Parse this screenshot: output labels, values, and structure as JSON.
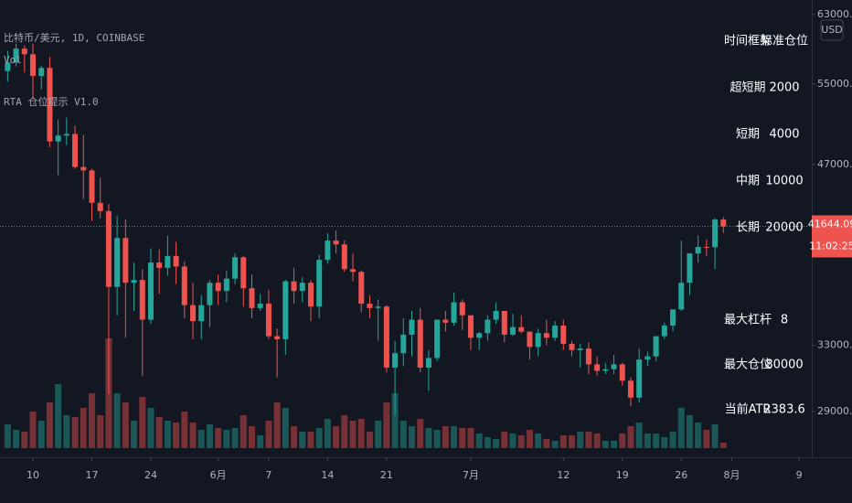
{
  "chart_data": {
    "type": "candlestick",
    "title": "比特币/美元, 1D, COINBASE",
    "indicators": [
      "Vol",
      "RTA 仓位提示 V1.0"
    ],
    "currency": "USD",
    "countdown": "11:02:25",
    "log_scale": true,
    "up_color": "#26a69a",
    "down_color": "#ef5350",
    "x": [
      7,
      8,
      9,
      10,
      11,
      12,
      13,
      14,
      15,
      16,
      17,
      18,
      19,
      20,
      21,
      22,
      23,
      24,
      25,
      26,
      27,
      28,
      29,
      30,
      31,
      32,
      33,
      34,
      35,
      36,
      37,
      38,
      39,
      40,
      41,
      42,
      43,
      44,
      45,
      46,
      47,
      48,
      49,
      50,
      51,
      52,
      53,
      54,
      55,
      56,
      57,
      58,
      59,
      60,
      61,
      62,
      63,
      64,
      65,
      66,
      67,
      68,
      69,
      70,
      71,
      72,
      73,
      74,
      75,
      76,
      77,
      78,
      79,
      80,
      81,
      82,
      83,
      84,
      85,
      86,
      87,
      88,
      89,
      90,
      91,
      92
    ],
    "xlim": [
      6.09,
      102.5
    ],
    "xticks": [
      10,
      17,
      24,
      {
        "value": 32,
        "label": "6月"
      },
      {
        "value": 38,
        "label": "7"
      },
      {
        "value": 45,
        "label": "14"
      },
      {
        "value": 52,
        "label": "21"
      },
      {
        "value": 62,
        "label": "7月"
      },
      {
        "value": 73,
        "label": "12"
      },
      {
        "value": 80,
        "label": "19"
      },
      {
        "value": 87,
        "label": "26"
      },
      {
        "value": 93,
        "label": "8月"
      },
      {
        "value": 101,
        "label": "9"
      }
    ],
    "ylim": [
      27000,
      64800
    ],
    "yticks": [
      {
        "value": 63000,
        "label": "63000.00"
      },
      {
        "value": 55000,
        "label": "55000.00"
      },
      {
        "value": 47000,
        "label": "47000.00"
      },
      {
        "value": 33000,
        "label": "33000.00"
      },
      {
        "value": 29000,
        "label": "29000.00"
      }
    ],
    "open": [
      56400,
      57350,
      58930,
      58280,
      55860,
      56750,
      49150,
      49720,
      49880,
      46760,
      46450,
      43600,
      42900,
      37000,
      40700,
      37300,
      37500,
      34700,
      38800,
      38400,
      39300,
      38500,
      35700,
      34600,
      35700,
      37300,
      36700,
      37600,
      39200,
      36900,
      35500,
      35800,
      33600,
      33400,
      37400,
      36700,
      37300,
      35600,
      39000,
      40500,
      40200,
      38300,
      38100,
      35800,
      35500,
      35600,
      31600,
      32500,
      33700,
      34700,
      31600,
      32200,
      34700,
      34500,
      35900,
      35000,
      33500,
      33800,
      34700,
      35300,
      33700,
      34200,
      33900,
      32900,
      33800,
      33500,
      34300,
      33100,
      32700,
      32800,
      31800,
      31400,
      31500,
      31800,
      30800,
      29800,
      32100,
      32300,
      33600,
      34300,
      35400,
      37300,
      39500,
      40000,
      39980,
      42200
    ],
    "high": [
      58650,
      59500,
      59300,
      59500,
      57000,
      58000,
      51300,
      51500,
      50700,
      49800,
      46600,
      45800,
      43500,
      42500,
      42200,
      38800,
      38300,
      39900,
      39800,
      40900,
      40400,
      38900,
      37300,
      36400,
      37500,
      37900,
      38200,
      39500,
      39300,
      37900,
      36500,
      36800,
      34100,
      37500,
      38400,
      37700,
      37500,
      39400,
      41100,
      41300,
      40500,
      39500,
      38200,
      36400,
      36100,
      35700,
      33300,
      34800,
      35300,
      35500,
      32700,
      34700,
      35300,
      36600,
      36100,
      35000,
      33900,
      35000,
      35900,
      35300,
      35100,
      35000,
      33900,
      34100,
      34700,
      34600,
      34700,
      33300,
      33100,
      33200,
      32300,
      31900,
      32400,
      31900,
      31000,
      32800,
      32600,
      33600,
      34500,
      35400,
      40500,
      39500,
      40900,
      40600,
      42300,
      42400
    ],
    "low": [
      55250,
      56900,
      56250,
      53400,
      54400,
      48600,
      46000,
      48800,
      46600,
      43900,
      42100,
      42300,
      30000,
      35000,
      33500,
      35300,
      31100,
      34400,
      36500,
      37800,
      37200,
      34800,
      33400,
      33400,
      34200,
      35700,
      35900,
      37200,
      35600,
      34800,
      35300,
      33400,
      31000,
      32400,
      35800,
      35900,
      34600,
      34800,
      38700,
      39500,
      38100,
      37400,
      35200,
      34800,
      33300,
      31300,
      28800,
      31700,
      32300,
      31300,
      30200,
      32000,
      33900,
      34300,
      34000,
      32700,
      32700,
      33300,
      34400,
      33200,
      33600,
      33800,
      32100,
      32300,
      33000,
      33300,
      32700,
      32300,
      31600,
      31200,
      31100,
      31200,
      31200,
      30500,
      29300,
      29500,
      31700,
      32000,
      33400,
      33900,
      35300,
      36400,
      38800,
      39300,
      38300,
      41100
    ],
    "close": [
      57350,
      58930,
      58280,
      55860,
      56750,
      49150,
      49720,
      49880,
      46760,
      46450,
      43600,
      42900,
      37000,
      40700,
      37300,
      37500,
      34700,
      38800,
      38400,
      39300,
      38500,
      35700,
      34600,
      35700,
      37300,
      36700,
      37600,
      39200,
      36900,
      35500,
      35800,
      33600,
      33400,
      37400,
      36700,
      37300,
      35600,
      39000,
      40500,
      40200,
      38300,
      38100,
      35800,
      35500,
      35600,
      31600,
      32500,
      33700,
      34700,
      31600,
      32200,
      34700,
      34500,
      35900,
      35000,
      33500,
      33800,
      34700,
      35300,
      33700,
      34200,
      33900,
      32900,
      33800,
      33500,
      34300,
      33100,
      32700,
      32800,
      31800,
      31400,
      31500,
      31800,
      30800,
      29800,
      32100,
      32300,
      33600,
      34300,
      35400,
      37300,
      39500,
      40000,
      39980,
      42200,
      41644.09
    ],
    "volume": [
      13000,
      10000,
      9000,
      20000,
      15000,
      25000,
      35000,
      18000,
      17000,
      22000,
      30000,
      18000,
      60000,
      30000,
      25000,
      15000,
      28000,
      22000,
      17000,
      15000,
      14000,
      20000,
      14000,
      10000,
      13000,
      11000,
      10000,
      11000,
      18000,
      12000,
      7000,
      15000,
      25000,
      22000,
      12000,
      9000,
      9000,
      11000,
      16000,
      12000,
      18000,
      15000,
      16000,
      9000,
      15000,
      25000,
      30000,
      15000,
      12000,
      16000,
      11000,
      10000,
      12000,
      12000,
      11000,
      11000,
      8000,
      6000,
      5000,
      9000,
      8000,
      7000,
      10000,
      8000,
      5000,
      4000,
      7000,
      7000,
      9000,
      9000,
      8000,
      4000,
      4000,
      8000,
      12000,
      14000,
      8000,
      8000,
      6000,
      9000,
      22000,
      18000,
      14000,
      10000,
      13000,
      3000
    ],
    "volume_lim": [
      0,
      120000
    ]
  },
  "panel": {
    "header": [
      "时间框架",
      "标准仓位"
    ],
    "rows": [
      [
        "超短期",
        "2000"
      ],
      [
        "短期",
        "4000"
      ],
      [
        "中期",
        "10000"
      ],
      [
        "长期",
        "20000"
      ]
    ],
    "stats": [
      [
        "最大杠杆",
        "8"
      ],
      [
        "最大仓位",
        "80000"
      ],
      [
        "当前ATR",
        "2383.6"
      ]
    ]
  }
}
